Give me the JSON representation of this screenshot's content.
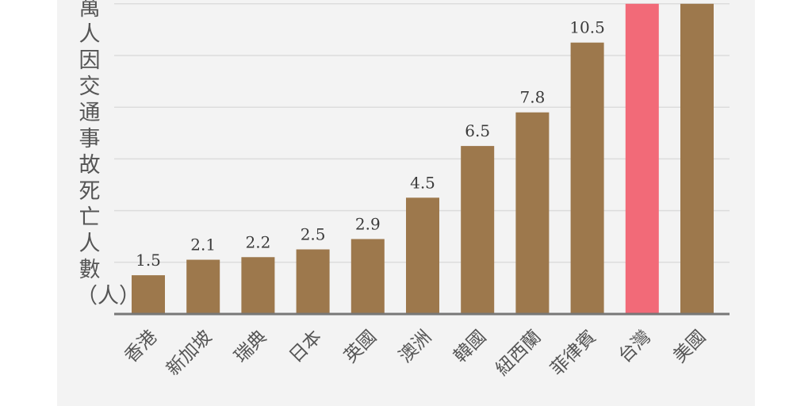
{
  "chart_data": {
    "type": "bar",
    "ylabel": "萬人因交通事故死亡人數（人）",
    "categories": [
      "香港",
      "新加坡",
      "瑞典",
      "日本",
      "英國",
      "澳洲",
      "韓國",
      "紐西蘭",
      "菲律賓",
      "台灣",
      "美國"
    ],
    "values": [
      1.5,
      2.1,
      2.2,
      2.5,
      2.9,
      4.5,
      6.5,
      7.8,
      10.5,
      12,
      12
    ],
    "data_labels": [
      "1.5",
      "2.1",
      "2.2",
      "2.5",
      "2.9",
      "4.5",
      "6.5",
      "7.8",
      "10.5",
      "",
      ""
    ],
    "ylim": [
      0,
      12
    ],
    "grid": true,
    "colors": {
      "default": "#9d784c",
      "highlight": "#f26a78",
      "highlight_category": "台灣",
      "grid": "#dcdcdc",
      "axis": "#777777"
    }
  }
}
